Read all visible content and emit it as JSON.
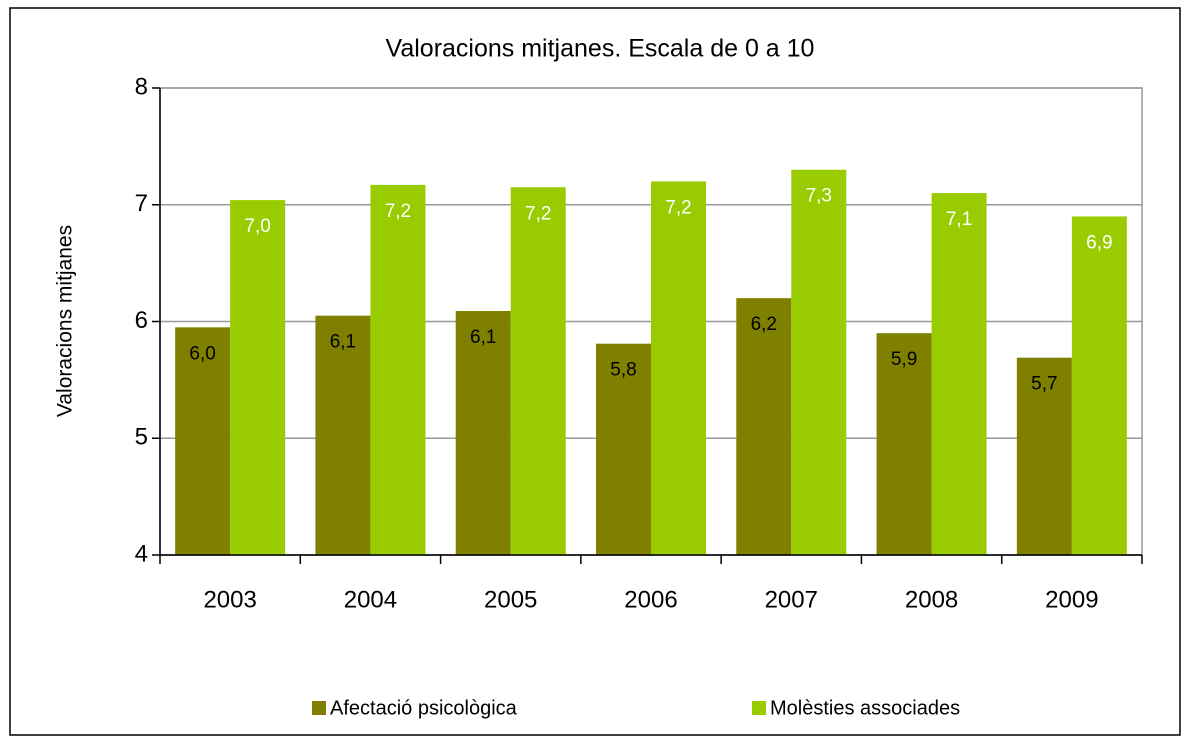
{
  "chart_data": {
    "type": "bar",
    "title": "Valoracions mitjanes. Escala de 0 a 10",
    "y_label": "Valoracions mitjanes",
    "categories": [
      "2003",
      "2004",
      "2005",
      "2006",
      "2007",
      "2008",
      "2009"
    ],
    "series": [
      {
        "name": "Afectació psicològica",
        "color": "#808000",
        "label_color": "#000000",
        "values": [
          5.95,
          6.05,
          6.09,
          5.81,
          6.2,
          5.9,
          5.69
        ],
        "value_labels": [
          "6,0",
          "6,1",
          "6,1",
          "5,8",
          "6,2",
          "5,9",
          "5,7"
        ]
      },
      {
        "name": "Molèsties associades",
        "color": "#99cc00",
        "label_color": "#ffffff",
        "values": [
          7.04,
          7.17,
          7.15,
          7.2,
          7.3,
          7.1,
          6.9
        ],
        "value_labels": [
          "7,0",
          "7,2",
          "7,2",
          "7,2",
          "7,3",
          "7,1",
          "6,9"
        ]
      }
    ],
    "ylim": [
      4,
      8
    ],
    "yticks": [
      4,
      5,
      6,
      7,
      8
    ],
    "grid": true,
    "legend": "bottom"
  }
}
